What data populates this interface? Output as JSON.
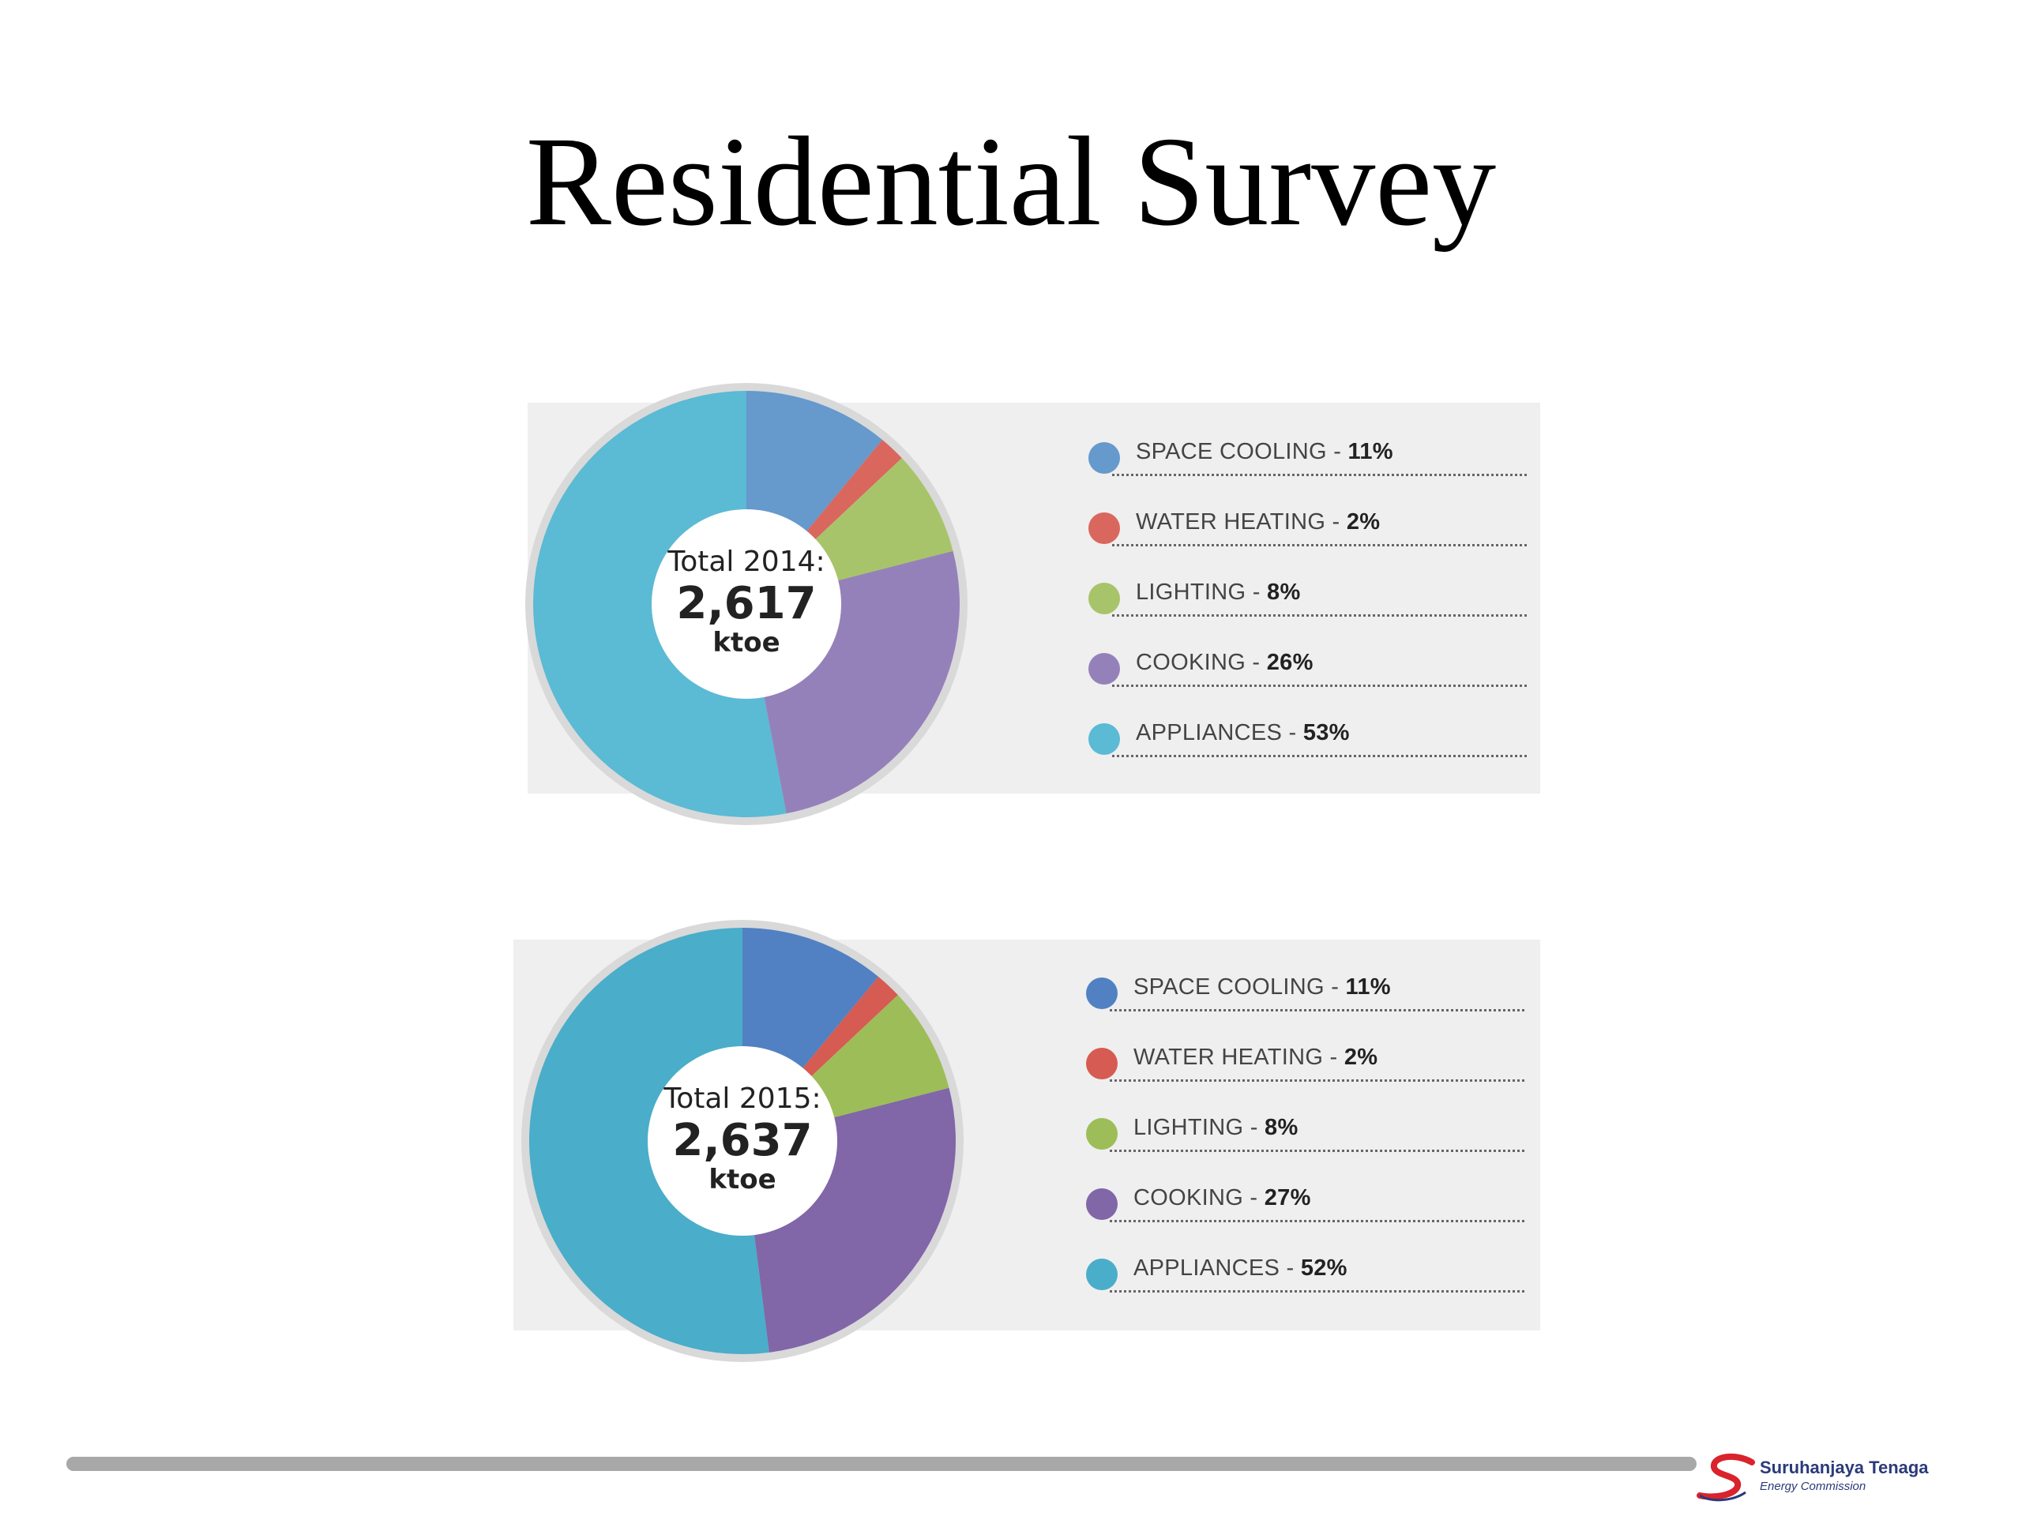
{
  "slide": {
    "title": "Residential Survey"
  },
  "logo": {
    "name": "Suruhanjaya Tenaga",
    "subtitle": "Energy Commission"
  },
  "chart_data": [
    {
      "type": "pie",
      "center_label": "Total 2014:",
      "center_value": "2,617",
      "center_unit": "ktoe",
      "categories": [
        "SPACE COOLING",
        "WATER HEATING",
        "LIGHTING",
        "COOKING",
        "APPLIANCES"
      ],
      "values": [
        11,
        2,
        8,
        26,
        53
      ],
      "value_labels": [
        "11%",
        "2%",
        "8%",
        "26%",
        "53%"
      ],
      "colors": [
        "#6699cc",
        "#d9675e",
        "#a8c46a",
        "#9581b9",
        "#5bbad4"
      ],
      "legend_position": "right"
    },
    {
      "type": "pie",
      "center_label": "Total 2015:",
      "center_value": "2,637",
      "center_unit": "ktoe",
      "categories": [
        "SPACE COOLING",
        "WATER HEATING",
        "LIGHTING",
        "COOKING",
        "APPLIANCES"
      ],
      "values": [
        11,
        2,
        8,
        27,
        52
      ],
      "value_labels": [
        "11%",
        "2%",
        "8%",
        "27%",
        "52%"
      ],
      "colors": [
        "#5181c2",
        "#d65b52",
        "#9dbd58",
        "#8166a8",
        "#4aadc9"
      ],
      "legend_position": "right"
    }
  ]
}
